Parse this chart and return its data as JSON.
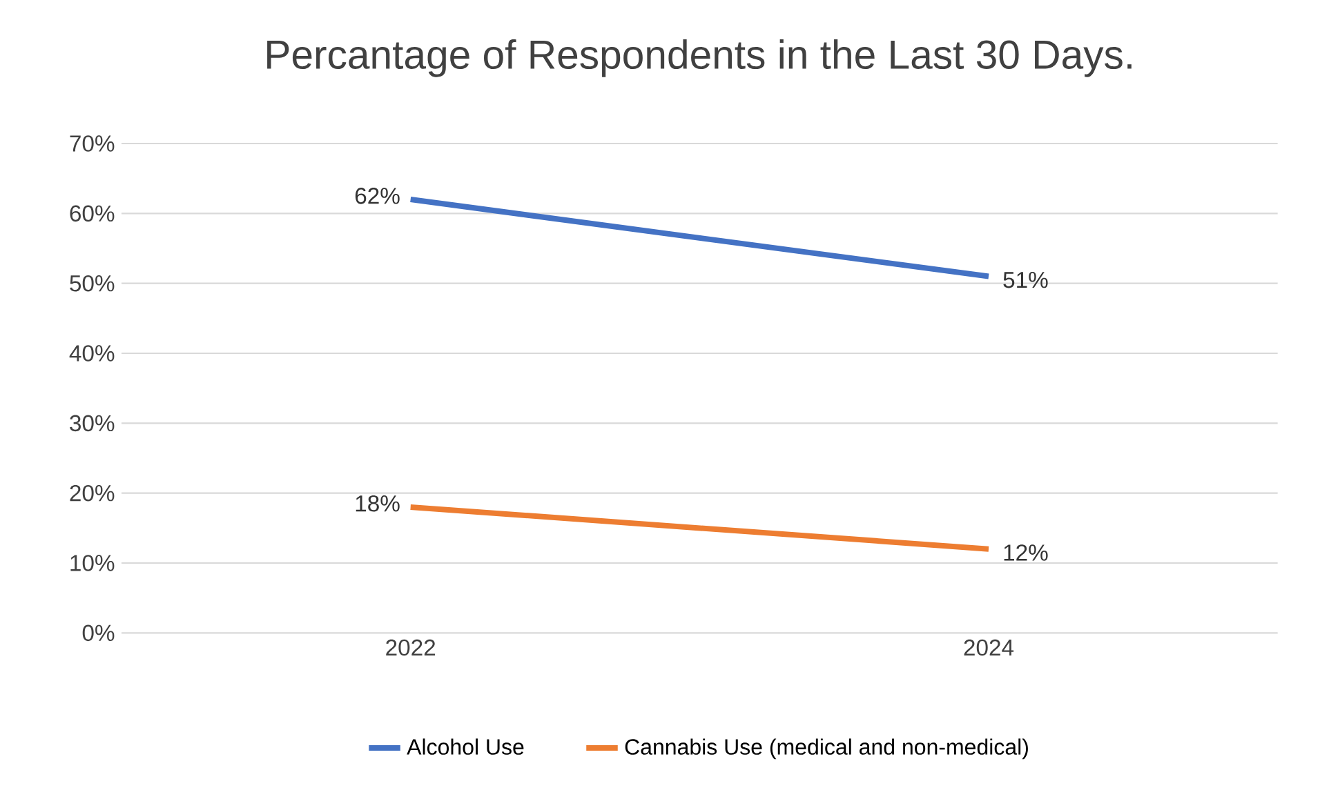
{
  "chart_data": {
    "type": "line",
    "title": "Percantage of Respondents in the Last 30 Days.",
    "categories": [
      "2022",
      "2024"
    ],
    "series": [
      {
        "name": "Alcohol Use",
        "color": "#4472c4",
        "values": [
          62,
          51
        ],
        "value_labels": [
          "62%",
          "51%"
        ]
      },
      {
        "name": "Cannabis Use (medical and non-medical)",
        "color": "#ed7d31",
        "values": [
          18,
          12
        ],
        "value_labels": [
          "18%",
          "12%"
        ]
      }
    ],
    "ylim": [
      0,
      70
    ],
    "yticks": [
      {
        "value": 0,
        "label": "0%"
      },
      {
        "value": 10,
        "label": "10%"
      },
      {
        "value": 20,
        "label": "20%"
      },
      {
        "value": 30,
        "label": "30%"
      },
      {
        "value": 40,
        "label": "40%"
      },
      {
        "value": 50,
        "label": "50%"
      },
      {
        "value": 60,
        "label": "60%"
      },
      {
        "value": 70,
        "label": "70%"
      }
    ],
    "grid": "y",
    "legend": "bottom"
  }
}
